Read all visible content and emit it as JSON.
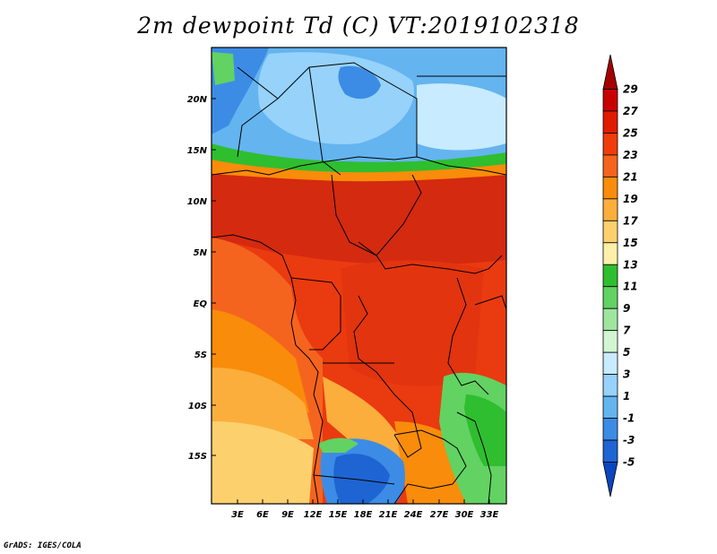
{
  "title": "2m dewpoint Td (C) VT:2019102318",
  "credit": "GrADS: IGES/COLA",
  "map": {
    "lat_ticks": [
      "20N",
      "15N",
      "10N",
      "5N",
      "EQ",
      "5S",
      "10S",
      "15S"
    ],
    "lon_ticks": [
      "3E",
      "6E",
      "9E",
      "12E",
      "15E",
      "18E",
      "21E",
      "24E",
      "27E",
      "30E",
      "33E"
    ]
  },
  "colorbar": {
    "labels": [
      "29",
      "27",
      "25",
      "23",
      "21",
      "19",
      "17",
      "15",
      "13",
      "11",
      "9",
      "7",
      "5",
      "3",
      "1",
      "-1",
      "-3",
      "-5"
    ],
    "colors": [
      "#a50000",
      "#c80000",
      "#e11b00",
      "#f03c0a",
      "#f5641e",
      "#f98c0a",
      "#fbae3c",
      "#fdd06e",
      "#fdf0a8",
      "#2fbe2f",
      "#62d262",
      "#9ee69e",
      "#d2f5d2",
      "#c8ebff",
      "#96d2fa",
      "#64b4f0",
      "#3c8ce6",
      "#1e64d2",
      "#0a46be"
    ]
  }
}
